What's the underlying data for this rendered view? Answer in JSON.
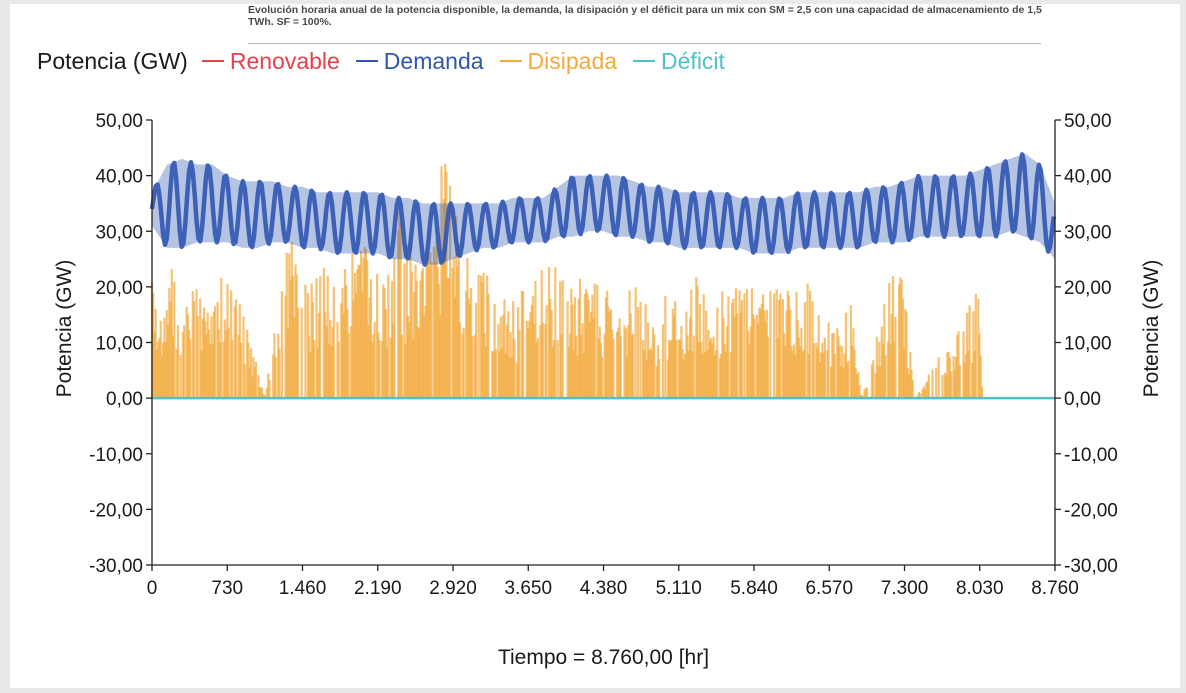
{
  "caption": "Evolución horaria anual de la potencia disponible, la demanda, la disipación y el déficit para un mix con SM = 2,5 con una capacidad de almacenamiento de 1,5 TWh. SF = 100%.",
  "chart_data": {
    "type": "line",
    "legend_title": "Potencia (GW)",
    "legend_position": "top-left",
    "xlabel": "Tiempo = 8.760,00 [hr]",
    "ylabel_left": "Potencia (GW)",
    "ylabel_right": "Potencia (GW)",
    "xlim": [
      0,
      8760
    ],
    "ylim": [
      -30,
      50
    ],
    "x_ticks": [
      0,
      730,
      1460,
      2190,
      2920,
      3650,
      4380,
      5110,
      5840,
      6570,
      7300,
      8030,
      8760
    ],
    "x_tick_labels": [
      "0",
      "730",
      "1.460",
      "2.190",
      "2.920",
      "3.650",
      "4.380",
      "5.110",
      "5.840",
      "6.570",
      "7.300",
      "8.030",
      "8.760"
    ],
    "y_ticks": [
      50,
      40,
      30,
      20,
      10,
      0,
      -10,
      -20,
      -30
    ],
    "y_tick_labels": [
      "50,00",
      "40,00",
      "30,00",
      "20,00",
      "10,00",
      "0,00",
      "-10,00",
      "-20,00",
      "-30,00"
    ],
    "grid": false,
    "series": [
      {
        "name": "Renovable",
        "color": "#e8414a",
        "x": [],
        "values": []
      },
      {
        "name": "Demanda",
        "color": "#2f57b0",
        "x": [
          0,
          146,
          292,
          438,
          584,
          730,
          876,
          1022,
          1168,
          1314,
          1460,
          1606,
          1752,
          1898,
          2044,
          2190,
          2336,
          2482,
          2628,
          2774,
          2920,
          3066,
          3212,
          3358,
          3504,
          3650,
          3796,
          3942,
          4088,
          4234,
          4380,
          4526,
          4672,
          4818,
          4964,
          5110,
          5256,
          5402,
          5548,
          5694,
          5840,
          5986,
          6132,
          6278,
          6424,
          6570,
          6716,
          6862,
          7008,
          7154,
          7300,
          7446,
          7592,
          7738,
          7884,
          8030,
          8176,
          8322,
          8468,
          8614,
          8760
        ],
        "low": [
          31,
          27,
          27,
          28,
          28,
          28,
          27,
          27,
          28,
          28,
          27,
          27,
          26,
          26,
          26,
          26,
          25,
          25,
          24,
          24,
          25,
          26,
          27,
          27,
          28,
          28,
          28,
          29,
          29,
          30,
          30,
          29,
          29,
          28,
          28,
          27,
          27,
          27,
          27,
          27,
          26,
          26,
          26,
          27,
          27,
          27,
          27,
          27,
          28,
          28,
          28,
          29,
          29,
          29,
          29,
          29,
          29,
          30,
          29,
          28,
          25
        ],
        "high": [
          37,
          42,
          43,
          42,
          42,
          40,
          39,
          39,
          39,
          38,
          38,
          37,
          37,
          37,
          37,
          37,
          36,
          36,
          35,
          35,
          35,
          35,
          35,
          35,
          36,
          36,
          36,
          38,
          40,
          40,
          40,
          40,
          39,
          38,
          38,
          37,
          37,
          37,
          37,
          36,
          36,
          36,
          36,
          37,
          37,
          37,
          37,
          37,
          38,
          38,
          39,
          40,
          40,
          40,
          40,
          41,
          42,
          43,
          44,
          42,
          35
        ]
      },
      {
        "name": "Disipada",
        "color": "#f3a93c",
        "x": [
          0,
          100,
          200,
          290,
          420,
          560,
          700,
          880,
          1100,
          1260,
          1300,
          1420,
          1540,
          1660,
          1800,
          1930,
          2060,
          2200,
          2330,
          2380,
          2460,
          2620,
          2760,
          2820,
          2900,
          3000,
          3120,
          3260,
          3400,
          3540,
          3680,
          3820,
          3950,
          4100,
          4240,
          4400,
          4560,
          4700,
          4850,
          5000,
          5150,
          5300,
          5450,
          5600,
          5760,
          5900,
          6050,
          6200,
          6360,
          6500,
          6660,
          6780,
          6880,
          7200,
          7300,
          7400,
          8020,
          8060,
          8760
        ],
        "values": [
          25,
          18,
          26,
          14,
          22,
          18,
          24,
          16,
          0,
          27,
          30,
          26,
          22,
          25,
          24,
          26,
          28,
          25,
          22,
          38,
          28,
          33,
          34,
          46,
          41,
          28,
          26,
          23,
          20,
          17,
          24,
          26,
          24,
          21,
          23,
          20,
          18,
          22,
          15,
          19,
          16,
          23,
          18,
          21,
          24,
          20,
          21,
          19,
          22,
          15,
          14,
          17,
          0,
          27,
          22,
          0,
          20,
          0,
          0
        ]
      },
      {
        "name": "Déficit",
        "color": "#4ec1c6",
        "x": [
          0,
          8760
        ],
        "values": [
          0,
          0
        ]
      }
    ]
  }
}
